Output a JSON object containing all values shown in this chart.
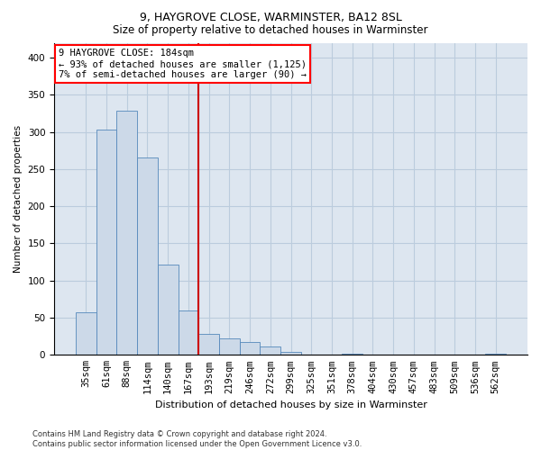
{
  "title1": "9, HAYGROVE CLOSE, WARMINSTER, BA12 8SL",
  "title2": "Size of property relative to detached houses in Warminster",
  "xlabel": "Distribution of detached houses by size in Warminster",
  "ylabel": "Number of detached properties",
  "footnote": "Contains HM Land Registry data © Crown copyright and database right 2024.\nContains public sector information licensed under the Open Government Licence v3.0.",
  "bar_labels": [
    "35sqm",
    "61sqm",
    "88sqm",
    "114sqm",
    "140sqm",
    "167sqm",
    "193sqm",
    "219sqm",
    "246sqm",
    "272sqm",
    "299sqm",
    "325sqm",
    "351sqm",
    "378sqm",
    "404sqm",
    "430sqm",
    "457sqm",
    "483sqm",
    "509sqm",
    "536sqm",
    "562sqm"
  ],
  "bar_heights": [
    57,
    303,
    328,
    265,
    121,
    60,
    28,
    22,
    17,
    11,
    4,
    0,
    0,
    2,
    0,
    0,
    0,
    0,
    0,
    0,
    2
  ],
  "bar_color": "#ccd9e8",
  "bar_edgecolor": "#5588bb",
  "grid_color": "#bbccdd",
  "bg_color": "#dde6f0",
  "vline_x": 5.5,
  "vline_color": "#cc0000",
  "annotation_text": "9 HAYGROVE CLOSE: 184sqm\n← 93% of detached houses are smaller (1,125)\n7% of semi-detached houses are larger (90) →",
  "ylim": [
    0,
    420
  ],
  "yticks": [
    0,
    50,
    100,
    150,
    200,
    250,
    300,
    350,
    400
  ],
  "title1_fontsize": 9,
  "title2_fontsize": 8.5,
  "xlabel_fontsize": 8,
  "ylabel_fontsize": 7.5,
  "tick_fontsize": 7.5,
  "ann_fontsize": 7.5
}
